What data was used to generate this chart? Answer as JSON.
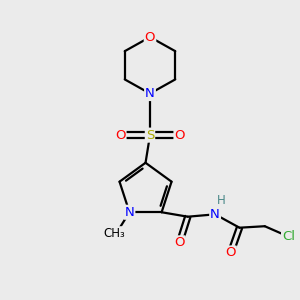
{
  "bg_color": "#ebebeb",
  "atom_colors": {
    "C": "#000000",
    "N": "#0000ff",
    "O": "#ff0000",
    "S": "#aaaa00",
    "Cl": "#33aa33",
    "H": "#4a8888"
  },
  "bond_color": "#000000",
  "bond_width": 1.6,
  "figsize": [
    3.0,
    3.0
  ],
  "dpi": 100,
  "xlim": [
    0,
    10
  ],
  "ylim": [
    0,
    10
  ],
  "font_size_atom": 9.5,
  "font_size_small": 8.5
}
